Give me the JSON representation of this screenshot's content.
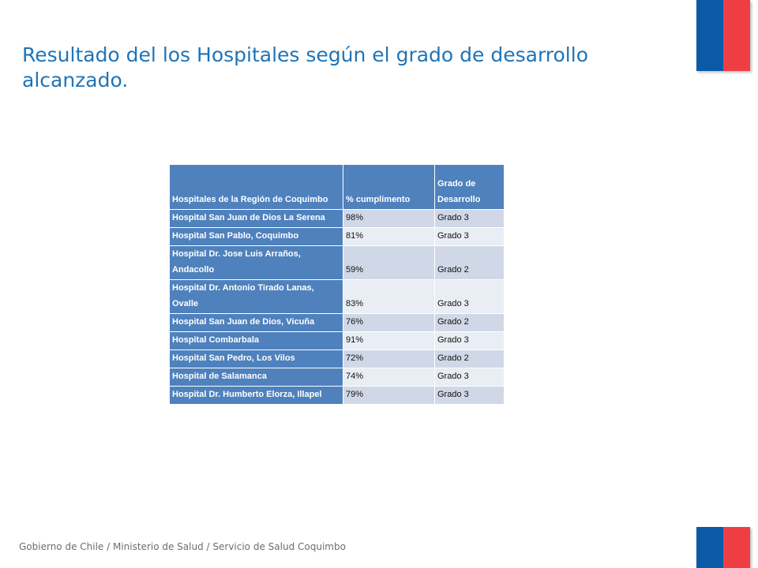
{
  "title": "Resultado del los Hospitales según el grado de desarrollo alcanzado.",
  "table": {
    "headers": [
      "Hospitales de la Región de Coquimbo",
      "% cumplimento",
      "Grado de Desarrollo"
    ],
    "rows": [
      {
        "name": "Hospital San Juan de Dios La Serena",
        "pct": "98%",
        "grade": "Grado 3"
      },
      {
        "name": "Hospital San Pablo, Coquimbo",
        "pct": "81%",
        "grade": "Grado 3"
      },
      {
        "name": "Hospital Dr. Jose Luis Arraños, Andacollo",
        "pct": "59%",
        "grade": "Grado 2"
      },
      {
        "name": "Hospital Dr. Antonio Tirado Lanas, Ovalle",
        "pct": "83%",
        "grade": "Grado 3"
      },
      {
        "name": "Hospital San Juan de Dios, Vicuña",
        "pct": "76%",
        "grade": "Grado 2"
      },
      {
        "name": "Hospital Combarbala",
        "pct": "91%",
        "grade": "Grado 3"
      },
      {
        "name": "Hospital San Pedro, Los Vilos",
        "pct": "72%",
        "grade": "Grado 2"
      },
      {
        "name": "Hospital de Salamanca",
        "pct": "74%",
        "grade": "Grado 3"
      },
      {
        "name": "Hospital  Dr. Humberto Elorza, Illapel",
        "pct": "79%",
        "grade": "Grado 3"
      }
    ]
  },
  "footer": "Gobierno de Chile / Ministerio de Salud / Servicio de Salud Coquimbo",
  "colors": {
    "accent_blue": "#1f74b8",
    "header_blue": "#4f81bd",
    "flag_blue": "#0a5aa8",
    "flag_red": "#ee3e44"
  }
}
